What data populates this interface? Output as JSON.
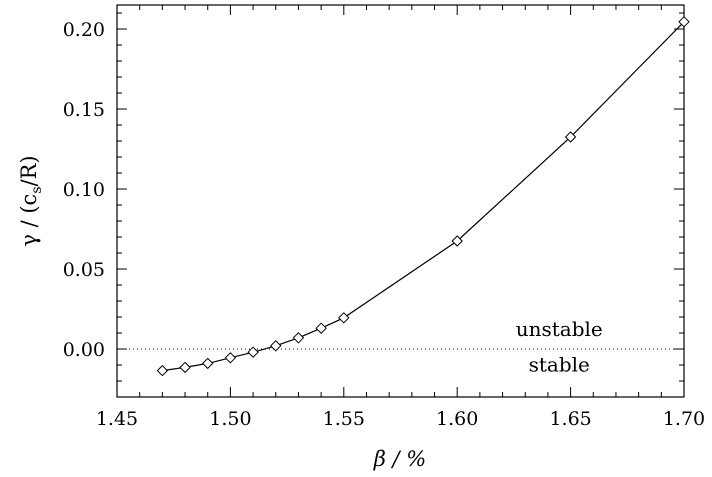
{
  "chart_data": {
    "type": "line",
    "xlabel": "β / %",
    "ylabel_parts": {
      "main": "γ / (c",
      "sub": "s",
      "tail": "/R)"
    },
    "xlim": [
      1.45,
      1.7
    ],
    "ylim": [
      -0.03,
      0.215
    ],
    "xticks": [
      1.45,
      1.5,
      1.55,
      1.6,
      1.65,
      1.7
    ],
    "xtick_labels": [
      "1.45",
      "1.50",
      "1.55",
      "1.60",
      "1.65",
      "1.70"
    ],
    "yticks": [
      0.0,
      0.05,
      0.1,
      0.15,
      0.2
    ],
    "ytick_labels": [
      "0.00",
      "0.05",
      "0.10",
      "0.15",
      "0.20"
    ],
    "reference_line": {
      "y": 0.0,
      "style": "dotted"
    },
    "annotations": [
      {
        "text": "unstable",
        "x": 1.645,
        "y": 0.008
      },
      {
        "text": "stable",
        "x": 1.645,
        "y": -0.014
      }
    ],
    "marker": "diamond",
    "grid": false,
    "series": [
      {
        "x": [
          1.47,
          1.48,
          1.49,
          1.5,
          1.51,
          1.52,
          1.53,
          1.54,
          1.55,
          1.6,
          1.65,
          1.7
        ],
        "y": [
          -0.0135,
          -0.0115,
          -0.009,
          -0.0055,
          -0.002,
          0.002,
          0.007,
          0.013,
          0.0195,
          0.0675,
          0.1325,
          0.2045
        ]
      }
    ]
  }
}
